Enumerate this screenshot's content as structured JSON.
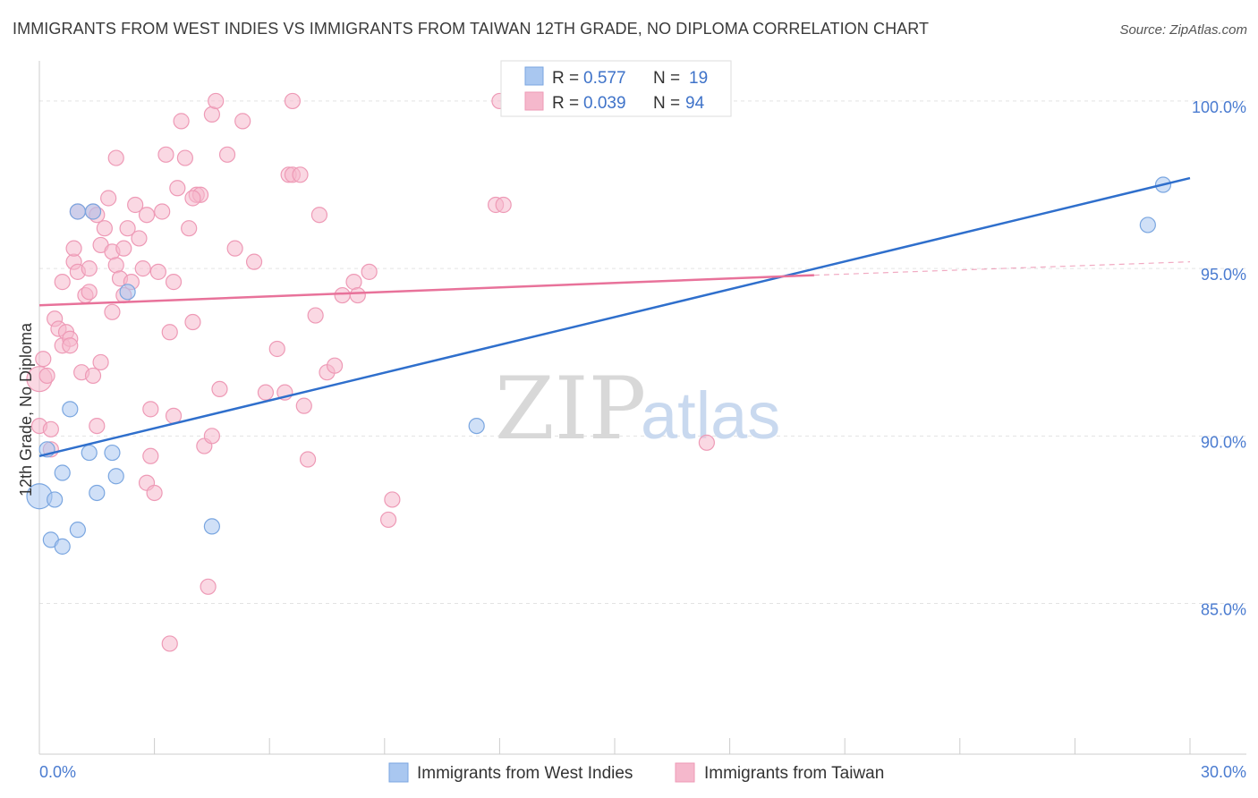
{
  "header": {
    "title": "IMMIGRANTS FROM WEST INDIES VS IMMIGRANTS FROM TAIWAN 12TH GRADE, NO DIPLOMA CORRELATION CHART",
    "source": "Source: ZipAtlas.com"
  },
  "watermark": {
    "zip": "ZIP",
    "atlas": "atlas"
  },
  "legend": {
    "rows": [
      {
        "r_label": "R = ",
        "r_value": "0.577",
        "n_label": "N = ",
        "n_value": "19",
        "color": "#a9c7f0"
      },
      {
        "r_label": "R = ",
        "r_value": "0.039",
        "n_label": "N = ",
        "n_value": "94",
        "color": "#f5b8cc"
      }
    ]
  },
  "bottom_legend": {
    "items": [
      {
        "label": "Immigrants from West Indies",
        "color": "#a9c7f0"
      },
      {
        "label": "Immigrants from Taiwan",
        "color": "#f5b8cc"
      }
    ]
  },
  "chart_data": {
    "type": "scatter",
    "title": "IMMIGRANTS FROM WEST INDIES VS IMMIGRANTS FROM TAIWAN 12TH GRADE, NO DIPLOMA CORRELATION CHART",
    "xlabel": "",
    "ylabel": "12th Grade, No Diploma",
    "xlim": [
      0,
      30
    ],
    "ylim": [
      80.5,
      101.2
    ],
    "x_tick_labels": [
      "0.0%",
      "30.0%"
    ],
    "y_ticks": [
      {
        "value": 100,
        "label": "100.0%"
      },
      {
        "value": 95,
        "label": "95.0%"
      },
      {
        "value": 90,
        "label": "90.0%"
      },
      {
        "value": 85,
        "label": "85.0%"
      }
    ],
    "grid": "horizontal dashed",
    "series": [
      {
        "name": "Immigrants from West Indies",
        "color": "#7aa6e0",
        "fill": "#a9c7f0",
        "trend": {
          "x1": 0,
          "y1": 89.4,
          "x2": 30,
          "y2": 97.7,
          "color": "#2f6fcc"
        },
        "points": [
          [
            0.0,
            88.2
          ],
          [
            0.2,
            89.6
          ],
          [
            0.3,
            86.9
          ],
          [
            0.4,
            88.1
          ],
          [
            0.6,
            86.7
          ],
          [
            0.6,
            88.9
          ],
          [
            0.8,
            90.8
          ],
          [
            1.0,
            87.2
          ],
          [
            1.0,
            96.7
          ],
          [
            1.3,
            89.5
          ],
          [
            1.4,
            96.7
          ],
          [
            1.5,
            88.3
          ],
          [
            1.9,
            89.5
          ],
          [
            2.0,
            88.8
          ],
          [
            2.3,
            94.3
          ],
          [
            4.5,
            87.3
          ],
          [
            11.4,
            90.3
          ],
          [
            29.3,
            97.5
          ],
          [
            28.9,
            96.3
          ]
        ]
      },
      {
        "name": "Immigrants from Taiwan",
        "color": "#ee9ab6",
        "fill": "#f5b8cc",
        "trend": {
          "x1": 0,
          "y1": 93.9,
          "x2": 20.2,
          "y2": 94.8,
          "x3": 30,
          "y3": 95.2,
          "color": "#e8729a"
        },
        "points": [
          [
            0.0,
            90.3
          ],
          [
            0.0,
            91.7
          ],
          [
            0.1,
            92.3
          ],
          [
            0.3,
            90.2
          ],
          [
            0.3,
            89.6
          ],
          [
            0.4,
            93.5
          ],
          [
            0.5,
            93.2
          ],
          [
            0.6,
            92.7
          ],
          [
            0.6,
            94.6
          ],
          [
            0.7,
            93.1
          ],
          [
            0.8,
            92.9
          ],
          [
            0.8,
            92.7
          ],
          [
            0.9,
            95.2
          ],
          [
            0.9,
            95.6
          ],
          [
            1.0,
            94.9
          ],
          [
            1.0,
            96.7
          ],
          [
            1.1,
            91.9
          ],
          [
            1.2,
            94.2
          ],
          [
            1.3,
            95.0
          ],
          [
            1.3,
            94.3
          ],
          [
            1.4,
            91.8
          ],
          [
            1.4,
            96.7
          ],
          [
            1.5,
            90.3
          ],
          [
            1.6,
            95.7
          ],
          [
            1.6,
            92.2
          ],
          [
            1.7,
            96.2
          ],
          [
            1.8,
            97.1
          ],
          [
            1.9,
            93.7
          ],
          [
            1.9,
            95.5
          ],
          [
            2.0,
            95.1
          ],
          [
            2.1,
            94.7
          ],
          [
            2.2,
            94.2
          ],
          [
            2.2,
            95.6
          ],
          [
            2.3,
            96.2
          ],
          [
            2.4,
            94.6
          ],
          [
            2.5,
            96.9
          ],
          [
            2.6,
            95.9
          ],
          [
            2.7,
            95.0
          ],
          [
            2.8,
            96.6
          ],
          [
            2.8,
            88.6
          ],
          [
            2.9,
            89.4
          ],
          [
            2.9,
            90.8
          ],
          [
            3.0,
            88.3
          ],
          [
            3.1,
            94.9
          ],
          [
            3.2,
            96.7
          ],
          [
            3.4,
            93.1
          ],
          [
            3.5,
            90.6
          ],
          [
            3.5,
            94.6
          ],
          [
            3.6,
            97.4
          ],
          [
            3.7,
            99.4
          ],
          [
            3.8,
            98.3
          ],
          [
            3.9,
            96.2
          ],
          [
            4.0,
            93.4
          ],
          [
            4.1,
            97.2
          ],
          [
            4.2,
            97.2
          ],
          [
            4.3,
            89.7
          ],
          [
            4.4,
            85.5
          ],
          [
            4.5,
            90.0
          ],
          [
            4.5,
            99.6
          ],
          [
            4.6,
            100.0
          ],
          [
            4.7,
            91.4
          ],
          [
            4.9,
            98.4
          ],
          [
            5.1,
            95.6
          ],
          [
            5.3,
            99.4
          ],
          [
            5.6,
            95.2
          ],
          [
            5.9,
            91.3
          ],
          [
            6.2,
            92.6
          ],
          [
            6.4,
            91.3
          ],
          [
            6.5,
            97.8
          ],
          [
            6.6,
            100.0
          ],
          [
            6.6,
            97.8
          ],
          [
            6.8,
            97.8
          ],
          [
            6.9,
            90.9
          ],
          [
            7.0,
            89.3
          ],
          [
            7.2,
            93.6
          ],
          [
            7.3,
            96.6
          ],
          [
            7.5,
            91.9
          ],
          [
            7.7,
            92.1
          ],
          [
            7.9,
            94.2
          ],
          [
            8.2,
            94.6
          ],
          [
            8.3,
            94.2
          ],
          [
            8.6,
            94.9
          ],
          [
            9.1,
            87.5
          ],
          [
            9.2,
            88.1
          ],
          [
            11.9,
            96.9
          ],
          [
            12.1,
            96.9
          ],
          [
            12.0,
            100.0
          ],
          [
            17.4,
            89.8
          ],
          [
            3.3,
            98.4
          ],
          [
            2.0,
            98.3
          ],
          [
            4.0,
            97.1
          ],
          [
            1.5,
            96.6
          ],
          [
            3.4,
            83.8
          ],
          [
            0.2,
            91.8
          ]
        ]
      }
    ]
  }
}
